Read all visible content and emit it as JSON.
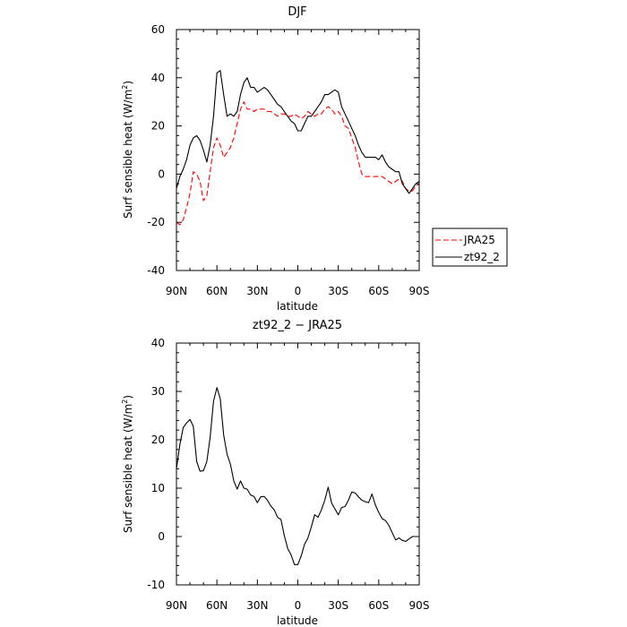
{
  "chart_data": [
    {
      "type": "line",
      "title": "DJF",
      "xlabel": "latitude",
      "ylabel": "Surf sensible heat (W/m²)",
      "ylabel_main": "Surf sensible heat (W/m",
      "ylabel_exp": "2",
      "ylabel_close": ")",
      "xlim": [
        90,
        -90
      ],
      "ylim": [
        -40,
        60
      ],
      "x_ticks": [
        90,
        60,
        30,
        0,
        -30,
        -60,
        -90
      ],
      "x_tick_labels": [
        "90N",
        "60N",
        "30N",
        "0",
        "30S",
        "60S",
        "90S"
      ],
      "y_ticks": [
        -40,
        -20,
        0,
        20,
        40,
        60
      ],
      "y_tick_labels": [
        "-40",
        "-20",
        "0",
        "20",
        "40",
        "60"
      ],
      "legend": [
        "JRA25",
        "zt92_2"
      ],
      "series": [
        {
          "name": "JRA25",
          "color": "#ff0000",
          "dash": "dashed",
          "x": [
            90,
            87.5,
            85,
            82.5,
            80,
            77.5,
            75,
            72.5,
            70,
            67.5,
            65,
            62.5,
            60,
            57.5,
            55,
            52.5,
            50,
            47.5,
            45,
            42.5,
            40,
            37.5,
            35,
            32.5,
            30,
            27.5,
            25,
            22.5,
            20,
            17.5,
            15,
            12.5,
            10,
            7.5,
            5,
            2.5,
            0,
            -2.5,
            -5,
            -7.5,
            -10,
            -12.5,
            -15,
            -17.5,
            -20,
            -22.5,
            -25,
            -27.5,
            -30,
            -32.5,
            -35,
            -37.5,
            -40,
            -42.5,
            -45,
            -47.5,
            -50,
            -52.5,
            -55,
            -57.5,
            -60,
            -62.5,
            -65,
            -67.5,
            -70,
            -72.5,
            -75,
            -77.5,
            -80,
            -82.5,
            -85,
            -87.5,
            -90
          ],
          "values": [
            -20,
            -21,
            -19,
            -14,
            -8,
            1,
            0,
            -3,
            -11,
            -9,
            1,
            11,
            15,
            12,
            7,
            9,
            11,
            15,
            21,
            27,
            30,
            27,
            27,
            26,
            27,
            27,
            27,
            26,
            26,
            25,
            24,
            25,
            25,
            24,
            24,
            25,
            24,
            23,
            24,
            26,
            25,
            24,
            25,
            25,
            27,
            28,
            27,
            25,
            26,
            24,
            20,
            19,
            15,
            11,
            5,
            0,
            -1,
            -1,
            -1,
            -1,
            -1,
            -1,
            -2,
            -3,
            -4,
            -3,
            -2,
            -3,
            -6,
            -7,
            -7,
            -5,
            -4
          ]
        },
        {
          "name": "zt92_2",
          "color": "#000000",
          "dash": "solid",
          "x": [
            90,
            87.5,
            85,
            82.5,
            80,
            77.5,
            75,
            72.5,
            70,
            67.5,
            65,
            62.5,
            60,
            57.5,
            55,
            52.5,
            50,
            47.5,
            45,
            42.5,
            40,
            37.5,
            35,
            32.5,
            30,
            27.5,
            25,
            22.5,
            20,
            17.5,
            15,
            12.5,
            10,
            7.5,
            5,
            2.5,
            0,
            -2.5,
            -5,
            -7.5,
            -10,
            -12.5,
            -15,
            -17.5,
            -20,
            -22.5,
            -25,
            -27.5,
            -30,
            -32.5,
            -35,
            -37.5,
            -40,
            -42.5,
            -45,
            -47.5,
            -50,
            -52.5,
            -55,
            -57.5,
            -60,
            -62.5,
            -65,
            -67.5,
            -70,
            -72.5,
            -75,
            -77.5,
            -80,
            -82.5,
            -85,
            -87.5,
            -90
          ],
          "values": [
            -6,
            -1,
            2,
            6,
            12,
            15,
            16,
            14,
            10,
            5,
            12,
            24,
            42,
            43,
            33,
            24,
            25,
            24,
            26,
            33,
            38,
            40,
            36,
            36,
            34,
            35,
            36,
            35,
            33,
            31,
            29,
            28,
            26,
            24,
            22,
            21,
            18,
            18,
            21,
            24,
            24,
            26,
            28,
            30,
            33,
            33,
            34,
            35,
            34,
            28,
            25,
            22,
            19,
            16,
            12,
            9,
            7,
            7,
            7,
            7,
            6,
            8,
            5,
            3,
            2,
            1,
            1,
            -4,
            -6,
            -8,
            -6,
            -4,
            -3
          ]
        }
      ]
    },
    {
      "type": "line",
      "title": "zt92_2 − JRA25",
      "xlabel": "latitude",
      "ylabel": "Surf sensible heat (W/m²)",
      "ylabel_main": "Surf sensible heat (W/m",
      "ylabel_exp": "2",
      "ylabel_close": ")",
      "xlim": [
        90,
        -90
      ],
      "ylim": [
        -10,
        40
      ],
      "x_ticks": [
        90,
        60,
        30,
        0,
        -30,
        -60,
        -90
      ],
      "x_tick_labels": [
        "90N",
        "60N",
        "30N",
        "0",
        "30S",
        "60S",
        "90S"
      ],
      "y_ticks": [
        -10,
        0,
        10,
        20,
        30,
        40
      ],
      "y_tick_labels": [
        "-10",
        "0",
        "10",
        "20",
        "30",
        "40"
      ],
      "series": [
        {
          "name": "zt92_2 - JRA25",
          "color": "#000000",
          "dash": "solid",
          "x": [
            90,
            87.5,
            85,
            82.5,
            80,
            77.5,
            75,
            72.5,
            70,
            67.5,
            65,
            62.5,
            60,
            57.5,
            55,
            52.5,
            50,
            47.5,
            45,
            42.5,
            40,
            37.5,
            35,
            32.5,
            30,
            27.5,
            25,
            22.5,
            20,
            17.5,
            15,
            12.5,
            10,
            7.5,
            5,
            2.5,
            0,
            -2.5,
            -5,
            -7.5,
            -10,
            -12.5,
            -15,
            -17.5,
            -20,
            -22.5,
            -25,
            -27.5,
            -30,
            -32.5,
            -35,
            -37.5,
            -40,
            -42.5,
            -45,
            -47.5,
            -50,
            -52.5,
            -55,
            -57.5,
            -60,
            -62.5,
            -65,
            -67.5,
            -70,
            -72.5,
            -75,
            -77.5,
            -80,
            -82.5,
            -85,
            -87.5,
            -90
          ],
          "values": [
            14,
            19,
            22.5,
            23.5,
            24.2,
            22.8,
            15.5,
            13.5,
            13.6,
            15.5,
            20.5,
            28,
            30.8,
            28.5,
            21,
            17,
            15,
            11.5,
            9.8,
            11.5,
            10,
            9.8,
            8.6,
            8.3,
            7,
            8.2,
            8.3,
            7.5,
            6.3,
            5.5,
            4,
            3.5,
            0.2,
            -2.5,
            -3.8,
            -5.8,
            -5.8,
            -4,
            -1.6,
            -0.3,
            2,
            4.5,
            4,
            5.5,
            7.5,
            10.2,
            7,
            5.7,
            4.5,
            6,
            6.2,
            7.5,
            9.2,
            9,
            8.2,
            7.5,
            7.2,
            7,
            8.8,
            6.5,
            5,
            3.7,
            3.3,
            2.3,
            0.8,
            -0.7,
            -0.3,
            -0.8,
            -1,
            -0.5,
            0,
            0,
            0
          ]
        }
      ]
    }
  ]
}
